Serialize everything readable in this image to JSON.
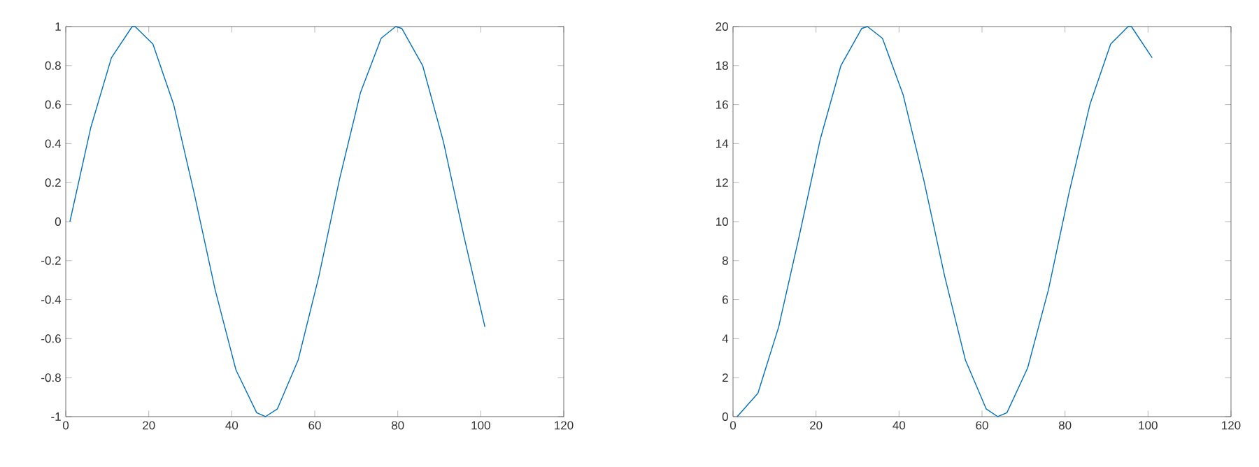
{
  "chart_data": [
    {
      "type": "line",
      "x": [
        1,
        6,
        11,
        16,
        16.7,
        21,
        26,
        31,
        36,
        41,
        46,
        48.1,
        51,
        56,
        61,
        66,
        71,
        76,
        79.5,
        81,
        86,
        91,
        96,
        101
      ],
      "values": [
        0,
        0.48,
        0.84,
        1.0,
        1.0,
        0.91,
        0.6,
        0.14,
        -0.35,
        -0.76,
        -0.98,
        -1.0,
        -0.96,
        -0.71,
        -0.28,
        0.22,
        0.66,
        0.94,
        1.0,
        0.99,
        0.8,
        0.41,
        -0.08,
        -0.54
      ],
      "color": "#0072bd",
      "marker": "none",
      "line_style": "solid",
      "xlim": [
        0,
        120
      ],
      "xticks": [
        0,
        20,
        40,
        60,
        80,
        100,
        120
      ],
      "ylim": [
        -1,
        1
      ],
      "yticks": [
        -1,
        -0.8,
        -0.6,
        -0.4,
        -0.2,
        0,
        0.2,
        0.4,
        0.6,
        0.8,
        1
      ]
    },
    {
      "type": "line",
      "x": [
        1,
        6,
        11,
        16,
        21,
        26,
        31,
        32.4,
        36,
        41,
        46,
        51,
        56,
        61,
        63.8,
        66,
        71,
        76,
        81,
        86,
        91,
        95.2,
        96,
        101
      ],
      "values": [
        0,
        1.2,
        4.6,
        9.3,
        14.2,
        18.0,
        19.9,
        20,
        19.4,
        16.5,
        12.1,
        7.2,
        2.9,
        0.4,
        0,
        0.2,
        2.5,
        6.5,
        11.5,
        16.0,
        19.1,
        20,
        20.0,
        18.4
      ],
      "color": "#0072bd",
      "marker": "none",
      "line_style": "solid",
      "xlim": [
        0,
        120
      ],
      "xticks": [
        0,
        20,
        40,
        60,
        80,
        100,
        120
      ],
      "ylim": [
        0,
        20
      ],
      "yticks": [
        0,
        2,
        4,
        6,
        8,
        10,
        12,
        14,
        16,
        18,
        20
      ]
    }
  ]
}
